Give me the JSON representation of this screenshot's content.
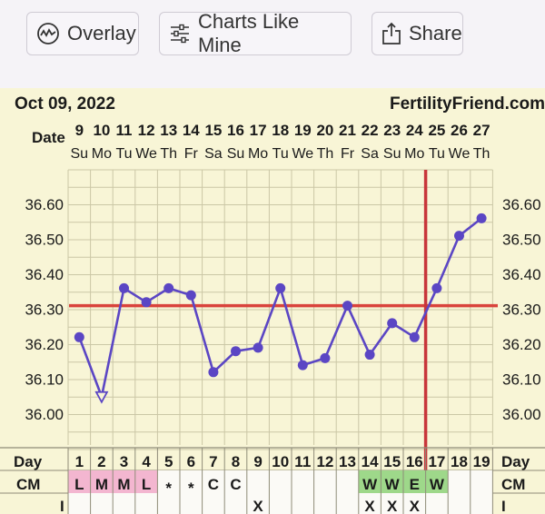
{
  "toolbar": {
    "overlay_label": "Overlay",
    "charts_like_mine_label": "Charts Like Mine",
    "share_label": "Share",
    "overlay_icon": "waveform-circle-icon",
    "charts_icon": "sliders-icon",
    "share_icon": "share-icon"
  },
  "chart_data": {
    "type": "line",
    "start_date": "Oct 09, 2022",
    "site": "FertilityFriend.com",
    "date_row_label": "Date",
    "day_row_label": "Day",
    "cm_row_label": "CM",
    "i_row_label": "I",
    "dates": [
      "9",
      "10",
      "11",
      "12",
      "13",
      "14",
      "15",
      "16",
      "17",
      "18",
      "19",
      "20",
      "21",
      "22",
      "23",
      "24",
      "25",
      "26",
      "27"
    ],
    "weekdays": [
      "Su",
      "Mo",
      "Tu",
      "We",
      "Th",
      "Fr",
      "Sa",
      "Su",
      "Mo",
      "Tu",
      "We",
      "Th",
      "Fr",
      "Sa",
      "Su",
      "Mo",
      "Tu",
      "We",
      "Th"
    ],
    "days": [
      1,
      2,
      3,
      4,
      5,
      6,
      7,
      8,
      9,
      10,
      11,
      12,
      13,
      14,
      15,
      16,
      17,
      18,
      19
    ],
    "temperatures": [
      36.22,
      36.05,
      36.36,
      36.32,
      36.36,
      36.34,
      36.12,
      36.18,
      36.19,
      36.36,
      36.14,
      36.16,
      36.31,
      36.17,
      36.26,
      36.22,
      36.36,
      36.51,
      36.56
    ],
    "discarded_days": [
      2
    ],
    "ylim": [
      35.97,
      36.64
    ],
    "yticks": [
      36.6,
      36.5,
      36.4,
      36.3,
      36.2,
      36.1,
      36.0
    ],
    "ytick_labels": [
      "36.60",
      "36.50",
      "36.40",
      "36.30",
      "36.20",
      "36.10",
      "36.00"
    ],
    "coverline": 36.31,
    "ovulation_day": 16,
    "cm": [
      "L",
      "M",
      "M",
      "L",
      "*",
      "*",
      "C",
      "C",
      "",
      "",
      "",
      "",
      "",
      "W",
      "W",
      "E",
      "W",
      "",
      ""
    ],
    "intercourse": [
      "",
      "",
      "",
      "",
      "",
      "",
      "",
      "",
      "X",
      "",
      "",
      "",
      "",
      "X",
      "X",
      "X",
      "",
      "",
      ""
    ],
    "colors": {
      "line": "#5b46c4",
      "coverline": "#d9443c",
      "ovulation_line": "#c8363b",
      "cm_pink": "#f3b6d0",
      "cm_green": "#9ed88a",
      "plot_bg": "#f8f5d6",
      "grid": "#cbc7a6"
    }
  }
}
